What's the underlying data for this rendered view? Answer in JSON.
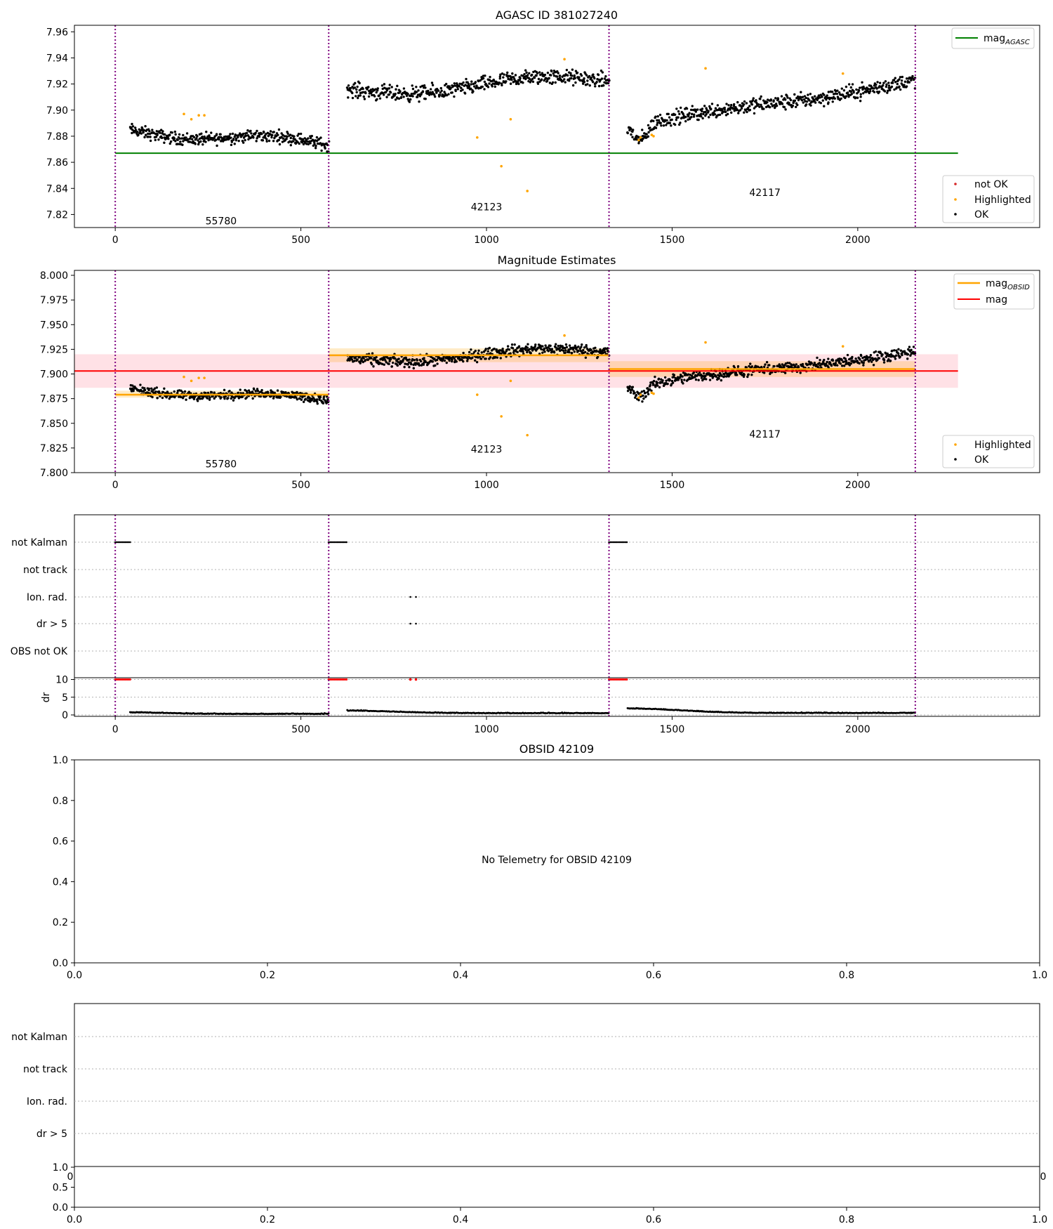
{
  "chart_data": [
    {
      "id": "agasc-panel",
      "type": "scatter",
      "title": "AGASC ID 381027240",
      "xlim": [
        -110,
        2490
      ],
      "ylim": [
        7.81,
        7.965
      ],
      "xticks": [
        0,
        500,
        1000,
        1500,
        2000
      ],
      "yticks": [
        7.82,
        7.84,
        7.86,
        7.88,
        7.9,
        7.92,
        7.94,
        7.96
      ],
      "ytick_decimals": 2,
      "obsid_boundaries": [
        0,
        575,
        1330,
        2155
      ],
      "segments": [
        {
          "obsid": "55780",
          "label_x": 285,
          "label_y": 7.815,
          "start": 40,
          "end": 575,
          "base": 7.879,
          "wave": [
            0.006,
            -0.005,
            0.0
          ],
          "noise": 0.004
        },
        {
          "obsid": "42123",
          "label_x": 1000,
          "label_y": 7.826,
          "start": 625,
          "end": 1330,
          "base": 7.919,
          "wave": [
            0.005,
            -0.006,
            0.008
          ],
          "noise": 0.005
        },
        {
          "obsid": "42117",
          "label_x": 1750,
          "label_y": 7.837,
          "start": 1380,
          "end": 2155,
          "base": 7.905,
          "wave": [
            -0.01,
            0.004,
            0.008
          ],
          "noise": 0.005
        }
      ],
      "lines": [
        {
          "name": "mag",
          "name_sub": "AGASC",
          "y": 7.867,
          "x_range": [
            0,
            2270
          ],
          "color": "#008000"
        }
      ],
      "highlighted_points": [
        [
          185,
          7.897
        ],
        [
          205,
          7.893
        ],
        [
          225,
          7.896
        ],
        [
          240,
          7.896
        ],
        [
          975,
          7.879
        ],
        [
          1040,
          7.857
        ],
        [
          1065,
          7.893
        ],
        [
          1110,
          7.838
        ],
        [
          1210,
          7.939
        ],
        [
          1410,
          7.877
        ],
        [
          1415,
          7.879
        ],
        [
          1445,
          7.881
        ],
        [
          1450,
          7.88
        ],
        [
          1590,
          7.932
        ],
        [
          1960,
          7.928
        ]
      ],
      "upper_legend": [
        {
          "label": "mag",
          "label_sub": "AGASC",
          "kind": "line",
          "color": "#008000"
        }
      ],
      "lower_legend": [
        {
          "label": "not OK",
          "kind": "point",
          "color": "#d62728"
        },
        {
          "label": "Highlighted",
          "kind": "point",
          "color": "#ffa500"
        },
        {
          "label": "OK",
          "kind": "point",
          "color": "#000000"
        }
      ]
    },
    {
      "id": "estimates-panel",
      "type": "scatter",
      "title": "Magnitude Estimates",
      "xlim": [
        -110,
        2490
      ],
      "ylim": [
        7.8,
        8.005
      ],
      "xticks": [
        0,
        500,
        1000,
        1500,
        2000
      ],
      "yticks": [
        7.8,
        7.825,
        7.85,
        7.875,
        7.9,
        7.925,
        7.95,
        7.975,
        8.0
      ],
      "ytick_decimals": 3,
      "obsid_boundaries": [
        0,
        575,
        1330,
        2155
      ],
      "segments": [
        {
          "obsid": "55780",
          "label_x": 285,
          "label_y": 7.809,
          "start": 40,
          "end": 575,
          "base": 7.879,
          "wave": [
            0.006,
            -0.005,
            0.0
          ],
          "noise": 0.004
        },
        {
          "obsid": "42123",
          "label_x": 1000,
          "label_y": 7.824,
          "start": 625,
          "end": 1330,
          "base": 7.919,
          "wave": [
            0.005,
            -0.006,
            0.008
          ],
          "noise": 0.005
        },
        {
          "obsid": "42117",
          "label_x": 1750,
          "label_y": 7.839,
          "start": 1380,
          "end": 2155,
          "base": 7.905,
          "wave": [
            -0.01,
            0.004,
            0.008
          ],
          "noise": 0.005
        }
      ],
      "obsid_means": [
        {
          "x_range": [
            0,
            575
          ],
          "mag": 7.879,
          "band": [
            7.876,
            7.883
          ]
        },
        {
          "x_range": [
            575,
            1330
          ],
          "mag": 7.919,
          "band": [
            7.912,
            7.926
          ]
        },
        {
          "x_range": [
            1330,
            2155
          ],
          "mag": 7.905,
          "band": [
            7.897,
            7.913
          ]
        }
      ],
      "lines": [
        {
          "name": "mag",
          "name_sub": "OBSID",
          "color": "#ffa500"
        },
        {
          "name": "mag",
          "y": 7.903,
          "band": [
            7.886,
            7.92
          ],
          "x_range": [
            -110,
            2270
          ],
          "color": "#ff0000"
        }
      ],
      "highlighted_points": [
        [
          185,
          7.897
        ],
        [
          205,
          7.893
        ],
        [
          225,
          7.896
        ],
        [
          240,
          7.896
        ],
        [
          975,
          7.879
        ],
        [
          1040,
          7.857
        ],
        [
          1065,
          7.893
        ],
        [
          1110,
          7.838
        ],
        [
          1210,
          7.939
        ],
        [
          1410,
          7.876
        ],
        [
          1415,
          7.879
        ],
        [
          1445,
          7.881
        ],
        [
          1450,
          7.88
        ],
        [
          1590,
          7.932
        ],
        [
          1960,
          7.928
        ]
      ],
      "upper_legend": [
        {
          "label": "mag",
          "label_sub": "OBSID",
          "kind": "line",
          "color": "#ffa500"
        },
        {
          "label": "mag",
          "label_sub": "",
          "kind": "line",
          "color": "#ff0000"
        }
      ],
      "lower_legend": [
        {
          "label": "Highlighted",
          "kind": "point",
          "color": "#ffa500"
        },
        {
          "label": "OK",
          "kind": "point",
          "color": "#000000"
        }
      ]
    },
    {
      "id": "flags-panel",
      "type": "scatter",
      "xlim": [
        -110,
        2490
      ],
      "xticks": [
        0,
        500,
        1000,
        1500,
        2000
      ],
      "flag_rows": [
        "not Kalman",
        "not track",
        "Ion. rad.",
        "dr > 5",
        "OBS not OK"
      ],
      "flag_points": [
        {
          "row": "not Kalman",
          "x_range": [
            0,
            40
          ]
        },
        {
          "row": "not Kalman",
          "x_range": [
            575,
            625
          ]
        },
        {
          "row": "not Kalman",
          "x_range": [
            1330,
            1380
          ]
        },
        {
          "row": "Ion. rad.",
          "x": [
            795,
            810
          ]
        },
        {
          "row": "dr > 5",
          "x": [
            795,
            810
          ]
        }
      ],
      "dr_ylim": [
        0,
        10
      ],
      "dr_yticks": [
        0,
        5,
        10
      ],
      "dr_ylabel": "dr",
      "dr_segments": [
        {
          "start": 40,
          "end": 575,
          "level": 0.25,
          "bump": 0.6
        },
        {
          "start": 625,
          "end": 1330,
          "level": 0.45,
          "bump": 1.0
        },
        {
          "start": 1380,
          "end": 2155,
          "level": 0.5,
          "bump": 1.8
        }
      ],
      "dr_high": [
        {
          "x_range": [
            0,
            40
          ],
          "y": 10
        },
        {
          "x_range": [
            575,
            625
          ],
          "y": 10
        },
        {
          "x_range": [
            1330,
            1380
          ],
          "y": 10
        },
        {
          "x": [
            795,
            810
          ],
          "y": 10
        }
      ],
      "obsid_boundaries": [
        0,
        575,
        1330,
        2155
      ]
    },
    {
      "id": "obsid-panel",
      "type": "scatter",
      "title": "OBSID 42109",
      "message": "No Telemetry for OBSID 42109",
      "xlim": [
        0,
        1
      ],
      "ylim": [
        0,
        1
      ],
      "xticks": [
        0.0,
        0.2,
        0.4,
        0.6,
        0.8,
        1.0
      ],
      "yticks": [
        0.0,
        0.2,
        0.4,
        0.6,
        0.8,
        1.0
      ]
    },
    {
      "id": "empty-flags-panel",
      "type": "scatter",
      "flag_rows": [
        "not Kalman",
        "not track",
        "Ion. rad.",
        "dr > 5"
      ],
      "xticks": [
        0.0,
        0.2,
        0.4,
        0.6,
        0.8,
        1.0
      ],
      "yticks_small": [
        0.0,
        0.5,
        1.0
      ],
      "edge_tick_labels": [
        "0",
        "0"
      ]
    }
  ]
}
